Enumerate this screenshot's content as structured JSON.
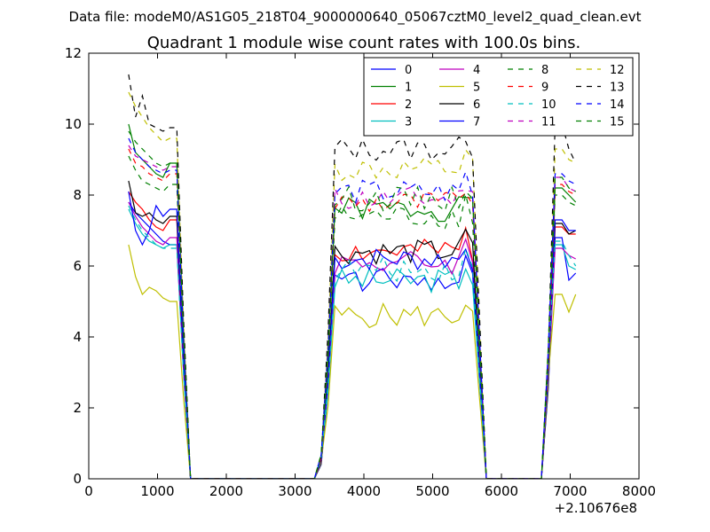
{
  "chart_data": {
    "type": "line",
    "suptitle": "Data file: modeM0/AS1G05_218T04_9000000640_05067cztM0_level2_quad_clean.evt",
    "title": "Quadrant 1 module wise count rates with 100.0s bins.",
    "xlabel": "",
    "ylabel": "",
    "x_offset_label": "+2.10676e8",
    "xlim": [
      0,
      8000
    ],
    "ylim": [
      0,
      12
    ],
    "xticks": [
      0,
      1000,
      2000,
      3000,
      4000,
      5000,
      6000,
      7000,
      8000
    ],
    "yticks": [
      0,
      2,
      4,
      6,
      8,
      10,
      12
    ],
    "x": [
      580,
      680,
      780,
      880,
      980,
      1080,
      1180,
      1280,
      1380,
      1480,
      1580,
      1680,
      1780,
      1880,
      1980,
      2080,
      2180,
      2280,
      2380,
      2480,
      2580,
      2680,
      2780,
      2880,
      2980,
      3080,
      3180,
      3280,
      3380,
      3480,
      3580,
      3680,
      3780,
      3880,
      3980,
      4080,
      4180,
      4280,
      4380,
      4480,
      4580,
      4680,
      4780,
      4880,
      4980,
      5080,
      5180,
      5280,
      5380,
      5480,
      5580,
      5680,
      5780,
      5880,
      5980,
      6080,
      6180,
      6280,
      6380,
      6480,
      6580,
      6680,
      6780,
      6880,
      6980,
      7080
    ],
    "legend_location": "upper right",
    "series": [
      {
        "name": "0",
        "color": "#0000ff",
        "dash": "solid",
        "high": [
          7.8,
          7.5,
          7.3,
          7.1,
          6.9,
          6.7,
          6.6
        ],
        "mid": 5.6,
        "end": [
          6.8,
          5.6,
          5.8
        ]
      },
      {
        "name": "1",
        "color": "#008000",
        "dash": "solid",
        "high": [
          10.0,
          9.2,
          9.0,
          8.8,
          8.6,
          8.5,
          8.9
        ],
        "mid": 7.6,
        "end": [
          8.2,
          8.0,
          7.8
        ]
      },
      {
        "name": "2",
        "color": "#ff0000",
        "dash": "solid",
        "high": [
          8.1,
          7.8,
          7.6,
          7.3,
          7.1,
          7.0,
          7.3
        ],
        "mid": 6.4,
        "end": [
          7.1,
          6.9,
          6.9
        ]
      },
      {
        "name": "3",
        "color": "#00bfbf",
        "dash": "solid",
        "high": [
          7.6,
          7.2,
          6.9,
          6.7,
          6.6,
          6.5,
          6.6
        ],
        "mid": 5.6,
        "end": [
          6.6,
          6.0,
          5.9
        ]
      },
      {
        "name": "4",
        "color": "#bf00bf",
        "dash": "solid",
        "high": [
          7.8,
          7.4,
          7.1,
          6.9,
          6.7,
          6.6,
          6.8
        ],
        "mid": 6.1,
        "end": [
          6.5,
          6.3,
          6.2
        ]
      },
      {
        "name": "5",
        "color": "#bfbf00",
        "dash": "solid",
        "high": [
          6.6,
          5.7,
          5.2,
          5.4,
          5.3,
          5.1,
          5.0
        ],
        "mid": 4.6,
        "end": [
          5.2,
          4.7,
          5.2
        ]
      },
      {
        "name": "6",
        "color": "#000000",
        "dash": "solid",
        "high": [
          8.4,
          7.5,
          7.4,
          7.5,
          7.3,
          7.2,
          7.4
        ],
        "mid": 6.4,
        "end": [
          7.2,
          6.9,
          7.0
        ]
      },
      {
        "name": "7",
        "color": "#0000ff",
        "dash": "solid",
        "high": [
          8.1,
          7.0,
          6.6,
          7.0,
          7.7,
          7.4,
          7.6
        ],
        "mid": 6.2,
        "end": [
          7.3,
          7.0,
          7.0
        ]
      },
      {
        "name": "8",
        "color": "#008000",
        "dash": "dashed",
        "high": [
          9.1,
          8.7,
          8.4,
          8.3,
          8.2,
          8.1,
          8.3
        ],
        "mid": 7.4,
        "end": [
          8.0,
          7.8,
          7.7
        ]
      },
      {
        "name": "9",
        "color": "#ff0000",
        "dash": "dashed",
        "high": [
          9.3,
          8.9,
          8.8,
          8.6,
          8.5,
          8.4,
          8.6
        ],
        "mid": 7.8,
        "end": [
          8.3,
          8.1,
          8.0
        ]
      },
      {
        "name": "10",
        "color": "#00bfbf",
        "dash": "dashed",
        "high": [
          7.7,
          7.3,
          7.0,
          6.8,
          6.6,
          6.5,
          6.5
        ],
        "mid": 5.9,
        "end": [
          6.7,
          6.3,
          6.0
        ]
      },
      {
        "name": "11",
        "color": "#bf00bf",
        "dash": "dashed",
        "high": [
          9.4,
          9.1,
          9.0,
          8.9,
          8.8,
          8.7,
          8.8
        ],
        "mid": 7.9,
        "end": [
          8.5,
          8.2,
          8.1
        ]
      },
      {
        "name": "12",
        "color": "#bfbf00",
        "dash": "dashed",
        "high": [
          10.9,
          10.5,
          10.2,
          9.9,
          9.7,
          9.5,
          9.6
        ],
        "mid": 8.7,
        "end": [
          9.3,
          9.0,
          8.9
        ]
      },
      {
        "name": "13",
        "color": "#000000",
        "dash": "dashed",
        "high": [
          11.4,
          10.2,
          10.8,
          10.0,
          9.9,
          9.8,
          9.9
        ],
        "mid": 9.3,
        "end": [
          10.0,
          9.3,
          8.9
        ]
      },
      {
        "name": "14",
        "color": "#0000ff",
        "dash": "dashed",
        "high": [
          9.6,
          9.2,
          9.0,
          8.8,
          8.7,
          8.6,
          8.7
        ],
        "mid": 8.1,
        "end": [
          8.6,
          8.4,
          8.3
        ]
      },
      {
        "name": "15",
        "color": "#008000",
        "dash": "dashed",
        "high": [
          9.8,
          9.5,
          9.3,
          9.1,
          8.9,
          8.8,
          8.9
        ],
        "mid": 7.9,
        "end": [
          8.5,
          8.2,
          8.1
        ]
      }
    ]
  }
}
